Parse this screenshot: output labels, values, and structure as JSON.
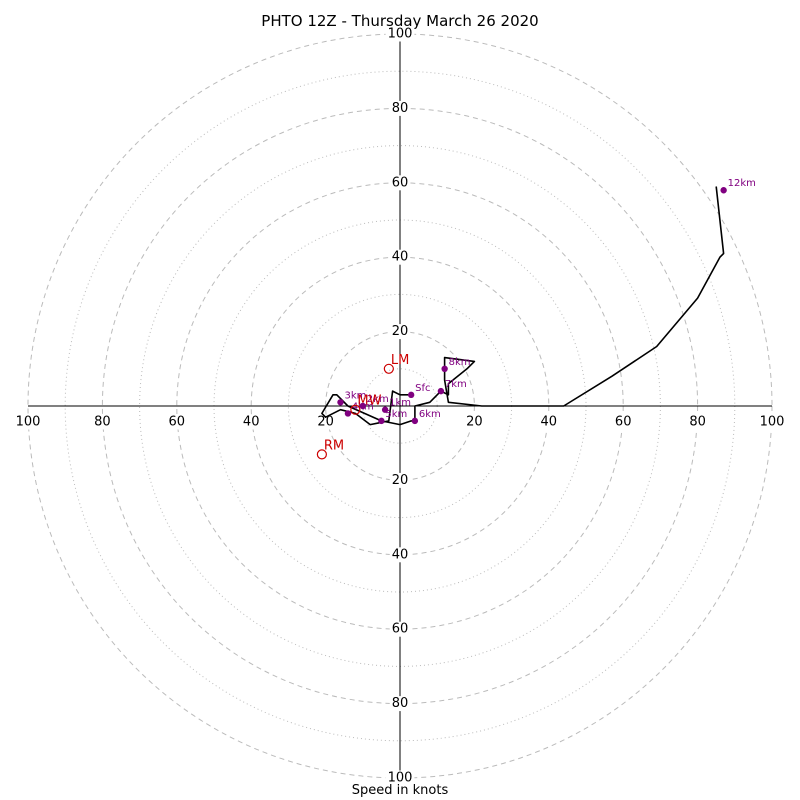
{
  "chart_data": {
    "type": "hodograph",
    "title": "PHTO 12Z - Thursday March 26 2020",
    "xlabel": "Speed in knots",
    "axis_range": [
      -100,
      100
    ],
    "major_rings": [
      20,
      40,
      60,
      80,
      100
    ],
    "minor_rings": [
      10,
      30,
      50,
      70,
      90
    ],
    "tick_labels": {
      "left": [
        "100",
        "80",
        "60",
        "40",
        "20"
      ],
      "right": [
        "20",
        "40",
        "60",
        "80",
        "100"
      ],
      "top": [
        "20",
        "40",
        "60",
        "80",
        "100"
      ],
      "bottom": [
        "20",
        "40",
        "60",
        "80",
        "100"
      ]
    },
    "colors": {
      "hodograph_line": "#000000",
      "height_marker": "#800080",
      "motion_marker": "#cc0000",
      "grid": "#bbbbbb"
    },
    "hodograph_line": [
      {
        "u": 3,
        "v": 3
      },
      {
        "u": 0,
        "v": 3
      },
      {
        "u": -2,
        "v": 4
      },
      {
        "u": -3,
        "v": -4
      },
      {
        "u": -8,
        "v": -5
      },
      {
        "u": -12,
        "v": -2
      },
      {
        "u": -16,
        "v": -1
      },
      {
        "u": -20,
        "v": -3
      },
      {
        "u": -21,
        "v": -2
      },
      {
        "u": -18,
        "v": 3
      },
      {
        "u": -17,
        "v": 3
      },
      {
        "u": -14,
        "v": 0
      },
      {
        "u": -5,
        "v": -4
      },
      {
        "u": 0,
        "v": -5
      },
      {
        "u": 3,
        "v": -4
      },
      {
        "u": 4,
        "v": -4
      },
      {
        "u": 4,
        "v": 0
      },
      {
        "u": 8,
        "v": 1
      },
      {
        "u": 11,
        "v": 4
      },
      {
        "u": 13,
        "v": 3
      },
      {
        "u": 13,
        "v": 6
      },
      {
        "u": 18,
        "v": 10
      },
      {
        "u": 20,
        "v": 12
      },
      {
        "u": 12,
        "v": 13
      },
      {
        "u": 12,
        "v": 11
      },
      {
        "u": 12,
        "v": 7
      },
      {
        "u": 13,
        "v": 1
      },
      {
        "u": 22,
        "v": 0
      },
      {
        "u": 30,
        "v": 0
      },
      {
        "u": 44,
        "v": 0
      },
      {
        "u": 57,
        "v": 8
      },
      {
        "u": 69,
        "v": 16
      },
      {
        "u": 80,
        "v": 29
      },
      {
        "u": 86,
        "v": 40
      },
      {
        "u": 87,
        "v": 41
      },
      {
        "u": 85,
        "v": 59
      }
    ],
    "height_markers": [
      {
        "label": "Sfc",
        "u": 3,
        "v": 3
      },
      {
        "label": "1km",
        "u": -4,
        "v": -1
      },
      {
        "label": "2km",
        "u": -10,
        "v": 0
      },
      {
        "label": "3km",
        "u": -16,
        "v": 1
      },
      {
        "label": "4km",
        "u": -14,
        "v": -2
      },
      {
        "label": "5km",
        "u": -5,
        "v": -4
      },
      {
        "label": "6km",
        "u": 4,
        "v": -4
      },
      {
        "label": "7km",
        "u": 11,
        "v": 4
      },
      {
        "label": "8km",
        "u": 12,
        "v": 10
      },
      {
        "label": "12km",
        "u": 87,
        "v": 58
      }
    ],
    "motion_markers": [
      {
        "label": "LM",
        "u": -3,
        "v": 10
      },
      {
        "label": "RM",
        "u": -21,
        "v": -13
      },
      {
        "label": "MW",
        "u": -12,
        "v": -1
      }
    ]
  }
}
